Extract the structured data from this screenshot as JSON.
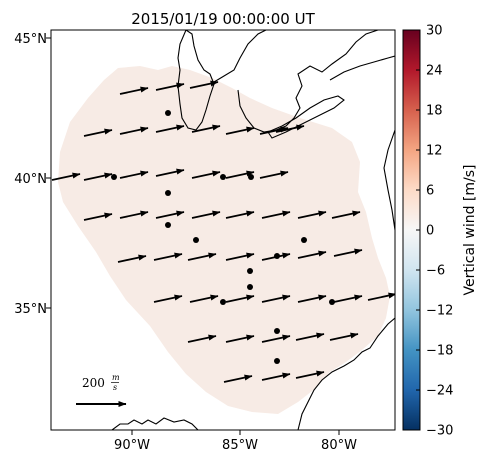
{
  "title": "2015/01/19 00:00:00 UT",
  "map": {
    "lat_ticks": [
      "45°N",
      "40°N",
      "35°N"
    ],
    "lon_ticks": [
      "90°W",
      "85°W",
      "80°W"
    ],
    "scale": {
      "value": "200",
      "unit_num": "m",
      "unit_den": "s"
    }
  },
  "colorbar": {
    "label": "Vertical wind [m/s]",
    "ticks": [
      "30",
      "24",
      "18",
      "12",
      "6",
      "0",
      "−6",
      "−12",
      "−18",
      "−24",
      "−30"
    ],
    "min": -30,
    "max": 30,
    "colors": [
      "#053061",
      "#2166ac",
      "#4393c3",
      "#92c5de",
      "#d1e5f0",
      "#f7f7f7",
      "#fddbc7",
      "#f4a582",
      "#d6604d",
      "#b2182b",
      "#67001f"
    ]
  },
  "colors": {
    "field": "#f7ebe5",
    "arrow": "#000000",
    "station": "#000000"
  }
}
